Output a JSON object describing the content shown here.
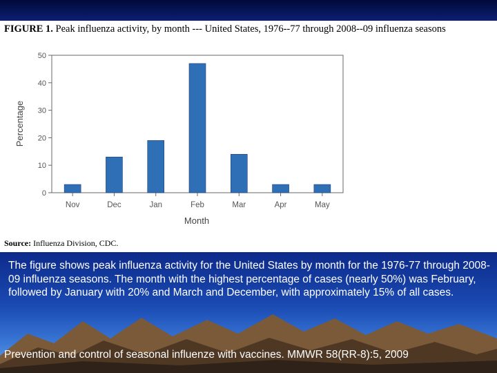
{
  "figure": {
    "title_label": "FIGURE 1.",
    "title_text": " Peak influenza activity, by month --- United States, 1976--77 through 2008--09 influenza seasons",
    "source_label": "Source:",
    "source_text": " Influenza Division, CDC."
  },
  "chart_data": {
    "type": "bar",
    "categories": [
      "Nov",
      "Dec",
      "Jan",
      "Feb",
      "Mar",
      "Apr",
      "May"
    ],
    "values": [
      3,
      13,
      19,
      47,
      14,
      3,
      3
    ],
    "xlabel": "Month",
    "ylabel": "Percentage",
    "ylim": [
      0,
      50
    ],
    "yticks": [
      0,
      10,
      20,
      30,
      40,
      50
    ],
    "bar_color": "#2e6fb5",
    "grid": false
  },
  "description": "The figure shows peak influenza activity for the United States by month for the 1976-77 through 2008-09 influenza seasons. The month with the highest percentage of cases (nearly 50%) was February, followed by January with 20% and March and December, with approximately 15% of all cases.",
  "citation": "Prevention and control of seasonal influenze with vaccines. MMWR 58(RR-8):5, 2009",
  "colors": {
    "background": "#0a1f6b",
    "panel": "#ffffff",
    "text_light": "#ffffff"
  }
}
